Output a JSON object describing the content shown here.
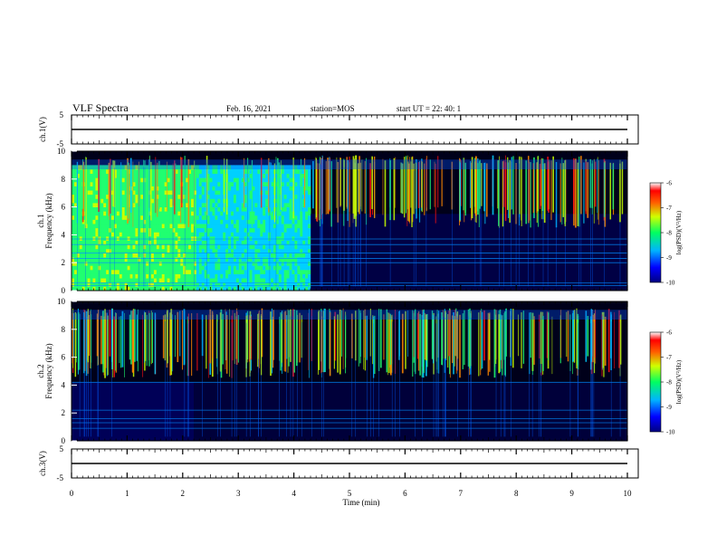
{
  "header": {
    "title": "VLF Spectra",
    "date": "Feb. 16, 2021",
    "station": "station=MOS",
    "start_ut": "start UT =  22: 40: 1"
  },
  "chart_data": [
    {
      "type": "line",
      "panel": "channel-1-voltage",
      "ylabel": "ch.1(V)",
      "ylim": [
        -5,
        5
      ],
      "yticks": [
        "5",
        "-5"
      ],
      "xlim": [
        0,
        10
      ],
      "trace_level": 0
    },
    {
      "type": "heatmap",
      "panel": "channel-1-spectrogram",
      "ylabel": "ch.1 Frequency (kHz)",
      "ylim": [
        0,
        10
      ],
      "yticks": [
        "0",
        "2",
        "4",
        "6",
        "8",
        "10"
      ],
      "xlim": [
        0,
        10
      ],
      "colorbar": {
        "label": "log(PSD)(V²/Hz)",
        "ticks": [
          "-6",
          "-7",
          "-8",
          "-9",
          "-10"
        ],
        "range": [
          -10,
          -6
        ]
      },
      "features": {
        "broadband_upper_khz": 9.0,
        "broadband_end_min": 4.3,
        "tweek_band_khz": [
          4.5,
          9.7
        ],
        "sferic_band_top_khz": 9.0
      }
    },
    {
      "type": "heatmap",
      "panel": "channel-2-spectrogram",
      "ylabel": "ch.2 Frequency (kHz)",
      "ylim": [
        0,
        10
      ],
      "yticks": [
        "0",
        "2",
        "4",
        "6",
        "8",
        "10"
      ],
      "xlim": [
        0,
        10
      ],
      "colorbar": {
        "label": "log(PSD)(V²/Hz)",
        "ticks": [
          "-6",
          "-7",
          "-8",
          "-9",
          "-10"
        ],
        "range": [
          -10,
          -6
        ]
      },
      "features": {
        "tweek_band_khz": [
          4.5,
          9.5
        ],
        "low_noise_end_min": 2.2
      }
    },
    {
      "type": "line",
      "panel": "channel-3-voltage",
      "ylabel": "ch.3(V)",
      "ylim": [
        -5,
        5
      ],
      "yticks": [
        "5",
        "-5"
      ],
      "xlim": [
        0,
        10
      ],
      "trace_level": 0
    }
  ],
  "x_axis": {
    "label": "Time (min)",
    "ticks": [
      "0",
      "1",
      "2",
      "3",
      "4",
      "5",
      "6",
      "7",
      "8",
      "9",
      "10"
    ]
  },
  "colors": {
    "background": "#000000",
    "colormap": [
      "#000033",
      "#0000c8",
      "#0060ff",
      "#00d0ff",
      "#20ff70",
      "#c8ff00",
      "#ff8800",
      "#ff1010",
      "#ffffff"
    ]
  }
}
